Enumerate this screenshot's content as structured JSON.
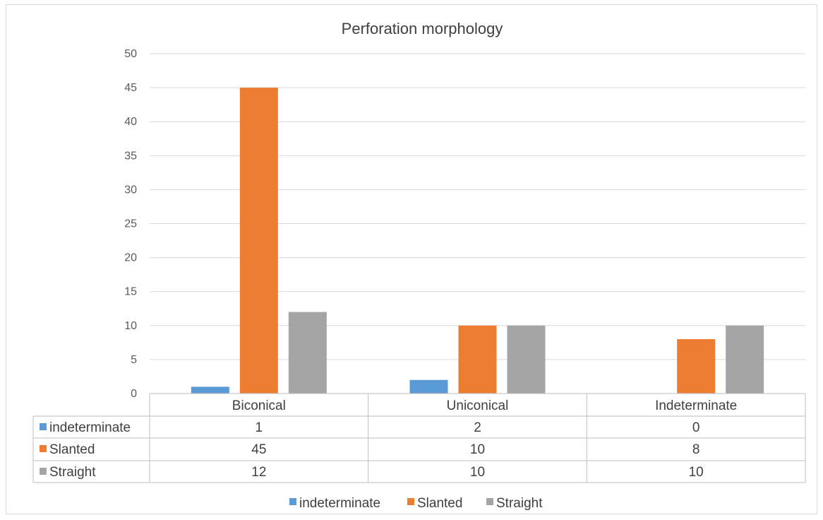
{
  "chart_data": {
    "type": "bar",
    "title": "Perforation morphology",
    "categories": [
      "Biconical",
      "Uniconical",
      "Indeterminate"
    ],
    "series": [
      {
        "name": "indeterminate",
        "values": [
          1,
          2,
          0
        ],
        "color": "#5b9bd5"
      },
      {
        "name": "Slanted",
        "values": [
          45,
          10,
          8
        ],
        "color": "#ed7d31"
      },
      {
        "name": "Straight",
        "values": [
          12,
          10,
          10
        ],
        "color": "#a5a5a5"
      }
    ],
    "ylim": [
      0,
      50
    ],
    "yticks": [
      0,
      5,
      10,
      15,
      20,
      25,
      30,
      35,
      40,
      45,
      50
    ],
    "grid": true,
    "data_table": true,
    "legend_position": "bottom"
  }
}
